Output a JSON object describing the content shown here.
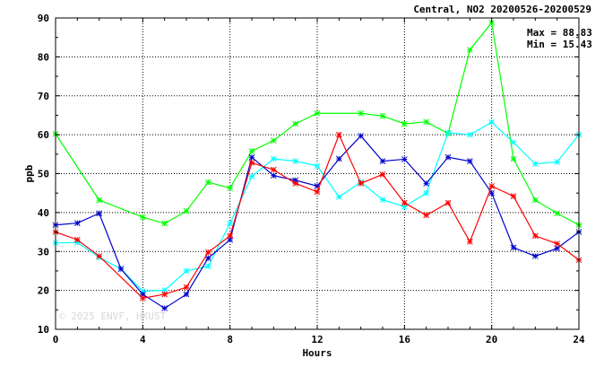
{
  "chart_data": {
    "type": "line",
    "title": "Central, NO2 20200526-20200529",
    "xlabel": "Hours",
    "ylabel": "ppb",
    "xlim": [
      0,
      24
    ],
    "ylim": [
      10,
      90
    ],
    "xticks": [
      0,
      4,
      8,
      12,
      16,
      20,
      24
    ],
    "yticks": [
      10,
      20,
      30,
      40,
      50,
      60,
      70,
      80,
      90
    ],
    "grid": true,
    "stats": {
      "max": "Max = 88.83",
      "min": "Min = 15.43"
    },
    "watermark": "© 2025 ENVF, HKUST",
    "x": [
      0,
      1,
      2,
      3,
      4,
      5,
      6,
      7,
      8,
      9,
      10,
      11,
      12,
      13,
      14,
      15,
      16,
      17,
      18,
      19,
      20,
      21,
      22,
      23,
      24
    ],
    "series": [
      {
        "color": "#00ff00",
        "values": [
          60.2,
          null,
          43.2,
          null,
          38.8,
          37.2,
          40.4,
          47.8,
          46.3,
          55.8,
          58.5,
          62.8,
          65.5,
          null,
          65.5,
          64.8,
          62.8,
          63.3,
          60.3,
          81.8,
          88.8,
          53.8,
          43.2,
          39.8,
          36.8
        ]
      },
      {
        "color": "#00ffff",
        "values": [
          32.2,
          32.3,
          28.5,
          25.5,
          19.8,
          20.0,
          25.0,
          26.2,
          37.2,
          49.3,
          53.8,
          53.2,
          52.0,
          44.0,
          47.8,
          43.3,
          41.5,
          45.0,
          60.5,
          60.0,
          63.2,
          58.0,
          52.5,
          53.0,
          60.0
        ]
      },
      {
        "color": "#0000cc",
        "values": [
          36.8,
          37.3,
          39.8,
          25.5,
          19.0,
          15.4,
          19.0,
          28.3,
          33.0,
          54.2,
          49.5,
          48.3,
          46.8,
          53.8,
          59.7,
          53.2,
          53.7,
          47.5,
          54.2,
          53.2,
          45.0,
          31.0,
          28.8,
          30.8,
          35.0
        ]
      },
      {
        "color": "#ff0000",
        "values": [
          35.0,
          33.0,
          28.8,
          null,
          18.0,
          19.0,
          20.8,
          29.8,
          34.0,
          52.8,
          51.0,
          47.5,
          45.3,
          60.0,
          47.5,
          49.8,
          42.5,
          39.3,
          42.5,
          32.5,
          46.8,
          44.2,
          34.0,
          32.0,
          27.8
        ]
      }
    ]
  }
}
